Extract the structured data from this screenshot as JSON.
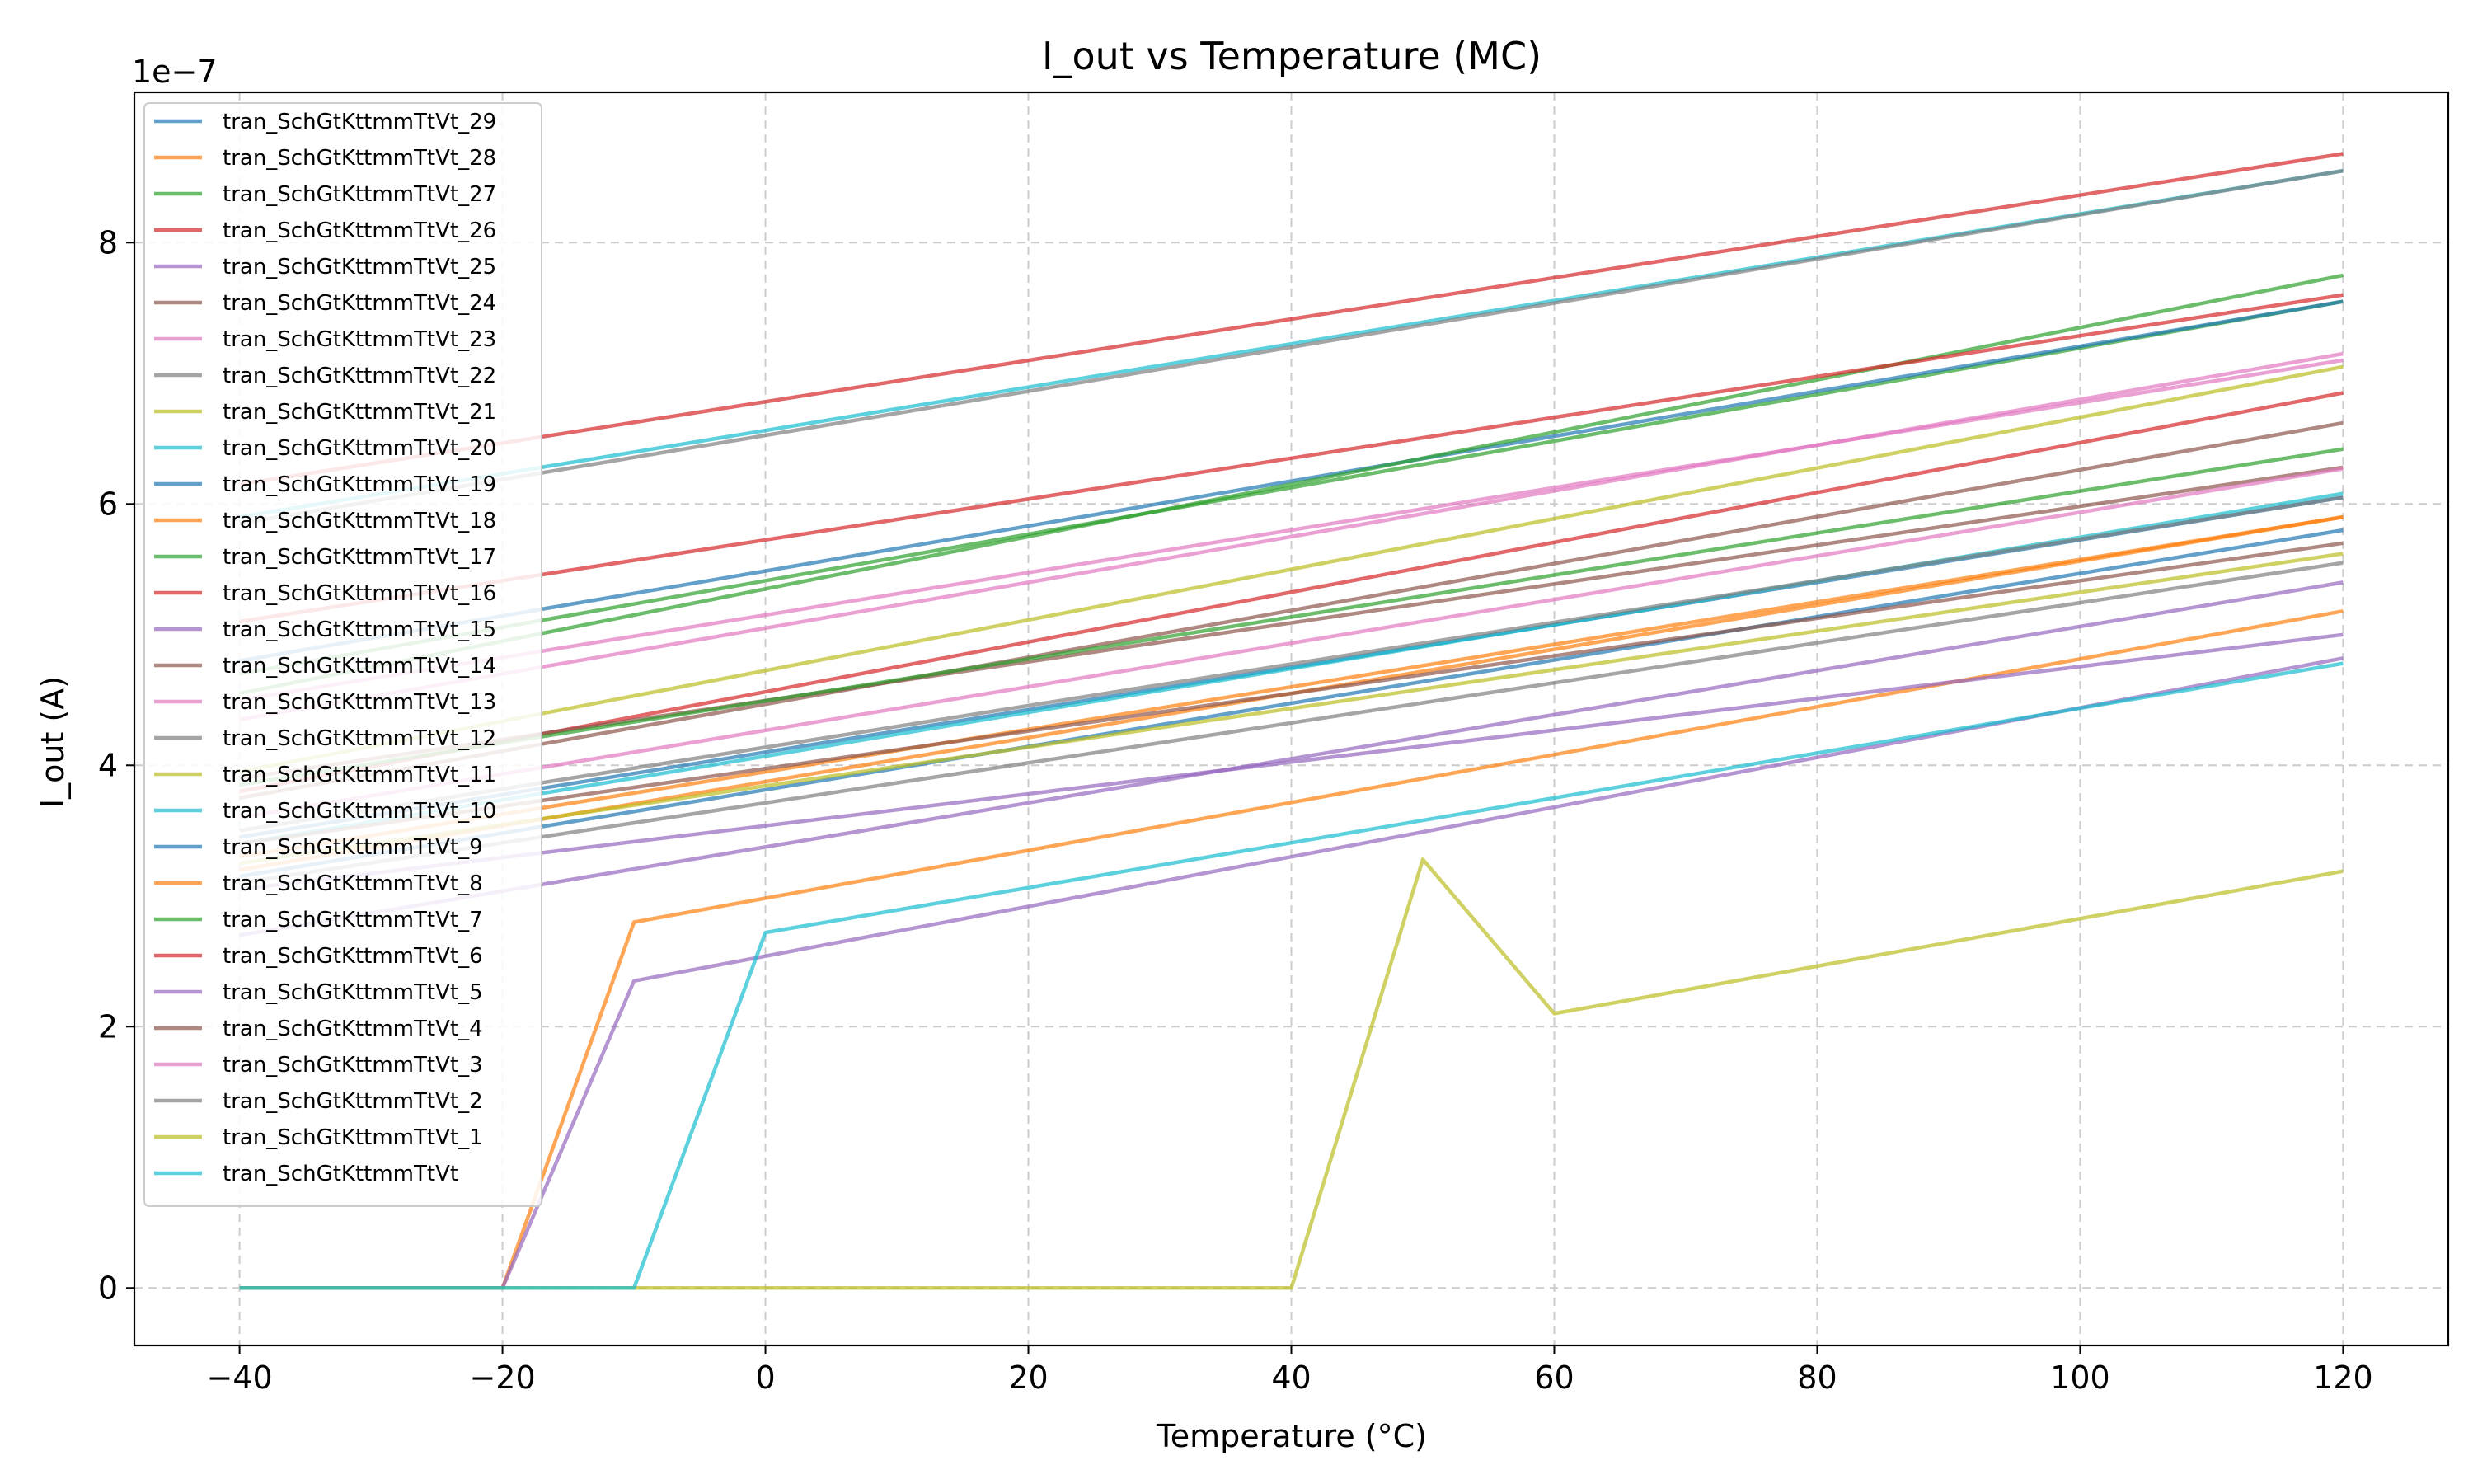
{
  "chart_data": {
    "type": "line",
    "title": "I_out vs Temperature (MC)",
    "xlabel": "Temperature (°C)",
    "ylabel": "I_out (A)",
    "y_offset_label": "1e−7",
    "y_scale": 1e-07,
    "xlim": [
      -48,
      128
    ],
    "ylim": [
      -0.44,
      9.15
    ],
    "xticks": [
      -40,
      -20,
      0,
      20,
      40,
      60,
      80,
      100,
      120
    ],
    "xtick_labels": [
      "−40",
      "−20",
      "0",
      "20",
      "40",
      "60",
      "80",
      "100",
      "120"
    ],
    "yticks": [
      0,
      2,
      4,
      6,
      8
    ],
    "ytick_labels": [
      "0",
      "2",
      "4",
      "6",
      "8"
    ],
    "grid": true,
    "legend_position": "upper-left",
    "x": [
      -40,
      -30,
      -20,
      -10,
      0,
      10,
      20,
      30,
      40,
      50,
      60,
      70,
      80,
      90,
      100,
      110,
      120
    ],
    "series": [
      {
        "name": "tran_SchGtKttmmTtVt_29",
        "color": "#1f77b4",
        "values": [
          3.45,
          null,
          null,
          null,
          null,
          null,
          null,
          null,
          null,
          null,
          null,
          null,
          null,
          null,
          null,
          null,
          6.05
        ]
      },
      {
        "name": "tran_SchGtKttmmTtVt_28",
        "color": "#ff7f0e",
        "values": [
          3.2,
          null,
          null,
          null,
          null,
          null,
          null,
          null,
          null,
          null,
          null,
          null,
          null,
          null,
          null,
          null,
          5.9
        ]
      },
      {
        "name": "tran_SchGtKttmmTtVt_27",
        "color": "#2ca02c",
        "values": [
          4.7,
          null,
          null,
          null,
          null,
          null,
          null,
          null,
          null,
          null,
          null,
          null,
          null,
          null,
          null,
          null,
          7.55
        ]
      },
      {
        "name": "tran_SchGtKttmmTtVt_26",
        "color": "#d62728",
        "values": [
          3.8,
          null,
          null,
          null,
          null,
          null,
          null,
          null,
          null,
          null,
          null,
          null,
          null,
          null,
          null,
          null,
          6.85
        ]
      },
      {
        "name": "tran_SchGtKttmmTtVt_25",
        "color": "#9467bd",
        "values": [
          2.7,
          null,
          null,
          null,
          null,
          null,
          null,
          null,
          null,
          null,
          null,
          null,
          null,
          null,
          null,
          null,
          5.4
        ]
      },
      {
        "name": "tran_SchGtKttmmTtVt_24",
        "color": "#8c564b",
        "values": [
          3.75,
          null,
          null,
          null,
          null,
          null,
          null,
          null,
          null,
          null,
          null,
          null,
          null,
          null,
          null,
          null,
          6.62
        ]
      },
      {
        "name": "tran_SchGtKttmmTtVt_23",
        "color": "#e377c2",
        "values": [
          4.35,
          null,
          null,
          null,
          null,
          null,
          null,
          null,
          null,
          null,
          null,
          null,
          null,
          null,
          null,
          null,
          7.15
        ]
      },
      {
        "name": "tran_SchGtKttmmTtVt_22",
        "color": "#7f7f7f",
        "values": [
          3.1,
          null,
          null,
          null,
          null,
          null,
          null,
          null,
          null,
          null,
          null,
          null,
          null,
          null,
          null,
          null,
          5.55
        ]
      },
      {
        "name": "tran_SchGtKttmmTtVt_21",
        "color": "#bcbd22",
        "values": [
          3.95,
          null,
          null,
          null,
          null,
          null,
          null,
          null,
          null,
          null,
          null,
          null,
          null,
          null,
          null,
          null,
          7.05
        ]
      },
      {
        "name": "tran_SchGtKttmmTtVt_20",
        "color": "#17becf",
        "values": [
          5.9,
          null,
          null,
          null,
          null,
          null,
          null,
          null,
          null,
          null,
          null,
          null,
          null,
          null,
          null,
          null,
          8.55
        ]
      },
      {
        "name": "tran_SchGtKttmmTtVt_19",
        "color": "#1f77b4",
        "values": [
          4.8,
          null,
          null,
          null,
          null,
          null,
          null,
          null,
          null,
          null,
          null,
          null,
          null,
          null,
          null,
          null,
          7.55
        ]
      },
      {
        "name": "tran_SchGtKttmmTtVt_18",
        "color": "#ff7f0e",
        "values": [
          0,
          null,
          0,
          2.8,
          null,
          null,
          null,
          null,
          null,
          null,
          null,
          null,
          null,
          null,
          null,
          null,
          5.18
        ]
      },
      {
        "name": "tran_SchGtKttmmTtVt_17",
        "color": "#2ca02c",
        "values": [
          4.55,
          null,
          null,
          null,
          null,
          null,
          null,
          null,
          null,
          null,
          null,
          null,
          null,
          null,
          null,
          null,
          7.75
        ]
      },
      {
        "name": "tran_SchGtKttmmTtVt_16",
        "color": "#d62728",
        "values": [
          5.1,
          null,
          null,
          null,
          null,
          null,
          null,
          null,
          null,
          null,
          null,
          null,
          null,
          null,
          null,
          null,
          7.6
        ]
      },
      {
        "name": "tran_SchGtKttmmTtVt_15",
        "color": "#9467bd",
        "values": [
          0,
          null,
          0,
          2.35,
          null,
          null,
          null,
          null,
          null,
          null,
          null,
          null,
          null,
          null,
          null,
          null,
          4.82
        ]
      },
      {
        "name": "tran_SchGtKttmmTtVt_14",
        "color": "#8c564b",
        "values": [
          3.9,
          null,
          null,
          null,
          null,
          null,
          null,
          null,
          null,
          null,
          null,
          null,
          null,
          null,
          null,
          null,
          6.28
        ]
      },
      {
        "name": "tran_SchGtKttmmTtVt_13",
        "color": "#e377c2",
        "values": [
          4.5,
          null,
          null,
          null,
          null,
          null,
          null,
          null,
          null,
          null,
          null,
          null,
          null,
          null,
          null,
          null,
          7.1
        ]
      },
      {
        "name": "tran_SchGtKttmmTtVt_12",
        "color": "#7f7f7f",
        "values": [
          5.85,
          null,
          null,
          null,
          null,
          null,
          null,
          null,
          null,
          null,
          null,
          null,
          null,
          null,
          null,
          null,
          8.55
        ]
      },
      {
        "name": "tran_SchGtKttmmTtVt_11",
        "color": "#bcbd22",
        "values": [
          0,
          null,
          null,
          null,
          null,
          null,
          null,
          null,
          0,
          3.28,
          2.1,
          null,
          null,
          null,
          null,
          null,
          3.19
        ]
      },
      {
        "name": "tran_SchGtKttmmTtVt_10",
        "color": "#17becf",
        "values": [
          3.4,
          null,
          null,
          null,
          null,
          null,
          null,
          null,
          null,
          null,
          null,
          null,
          null,
          null,
          null,
          null,
          6.08
        ]
      },
      {
        "name": "tran_SchGtKttmmTtVt_9",
        "color": "#1f77b4",
        "values": [
          3.15,
          null,
          null,
          null,
          null,
          null,
          null,
          null,
          null,
          null,
          null,
          null,
          null,
          null,
          null,
          null,
          5.8
        ]
      },
      {
        "name": "tran_SchGtKttmmTtVt_8",
        "color": "#ff7f0e",
        "values": [
          3.3,
          null,
          null,
          null,
          null,
          null,
          null,
          null,
          null,
          null,
          null,
          null,
          null,
          null,
          null,
          null,
          5.9
        ]
      },
      {
        "name": "tran_SchGtKttmmTtVt_7",
        "color": "#2ca02c",
        "values": [
          3.85,
          null,
          null,
          null,
          null,
          null,
          null,
          null,
          null,
          null,
          null,
          null,
          null,
          null,
          null,
          null,
          6.42
        ]
      },
      {
        "name": "tran_SchGtKttmmTtVt_6",
        "color": "#d62728",
        "values": [
          6.15,
          null,
          null,
          null,
          null,
          null,
          null,
          null,
          null,
          null,
          null,
          null,
          null,
          null,
          null,
          null,
          8.68
        ]
      },
      {
        "name": "tran_SchGtKttmmTtVt_5",
        "color": "#9467bd",
        "values": [
          3.05,
          null,
          null,
          null,
          null,
          null,
          null,
          null,
          null,
          null,
          null,
          null,
          null,
          null,
          null,
          null,
          5.0
        ]
      },
      {
        "name": "tran_SchGtKttmmTtVt_4",
        "color": "#8c564b",
        "values": [
          3.4,
          null,
          null,
          null,
          null,
          null,
          null,
          null,
          null,
          null,
          null,
          null,
          null,
          null,
          null,
          null,
          5.7
        ]
      },
      {
        "name": "tran_SchGtKttmmTtVt_3",
        "color": "#e377c2",
        "values": [
          3.6,
          null,
          null,
          null,
          null,
          null,
          null,
          null,
          null,
          null,
          null,
          null,
          null,
          null,
          null,
          null,
          6.27
        ]
      },
      {
        "name": "tran_SchGtKttmmTtVt_2",
        "color": "#7f7f7f",
        "values": [
          3.5,
          null,
          null,
          null,
          null,
          null,
          null,
          null,
          null,
          null,
          null,
          null,
          null,
          null,
          null,
          null,
          6.05
        ]
      },
      {
        "name": "tran_SchGtKttmmTtVt_1",
        "color": "#bcbd22",
        "values": [
          3.25,
          null,
          null,
          null,
          null,
          null,
          null,
          null,
          null,
          null,
          null,
          null,
          null,
          null,
          null,
          null,
          5.62
        ]
      },
      {
        "name": "tran_SchGtKttmmTtVt",
        "color": "#17becf",
        "values": [
          0,
          null,
          null,
          0,
          2.72,
          null,
          null,
          null,
          null,
          null,
          null,
          null,
          null,
          null,
          null,
          null,
          4.78
        ]
      }
    ]
  }
}
